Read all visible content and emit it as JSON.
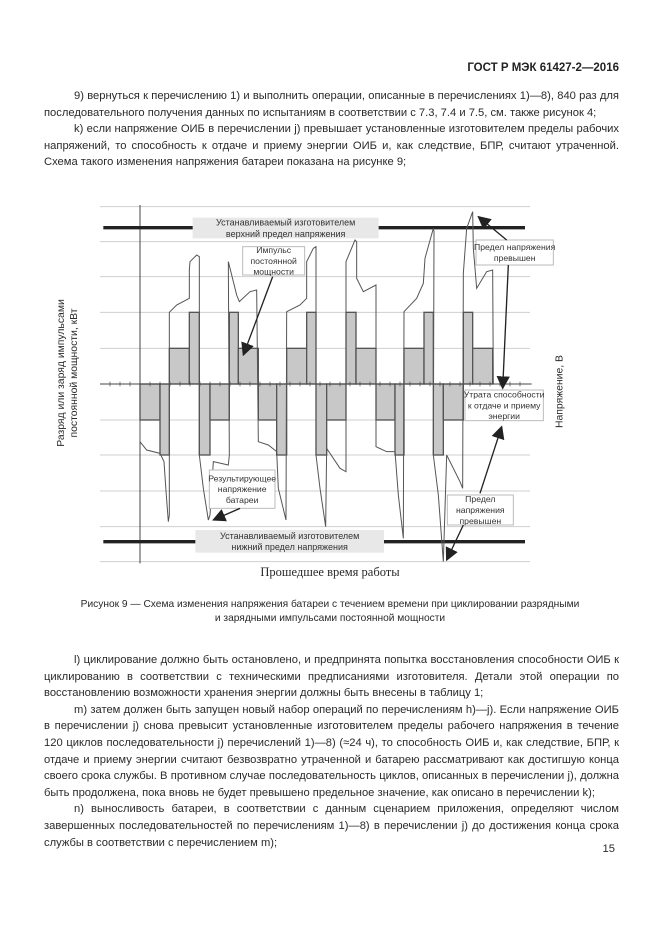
{
  "header": {
    "doc_id": "ГОСТ Р МЭК 61427-2—2016"
  },
  "top_paragraphs": [
    "9) вернуться к перечислению 1) и выполнить операции, описанные в перечислениях 1)—8), 840 раз для последовательного получения данных по испытаниям в соответствии с 7.3, 7.4 и 7.5, см. также рисунок 4;",
    "k) если напряжение ОИБ в перечислении j) превышает установленные изготовителем пределы рабочих напряжений, то способность к отдаче и приему энергии ОИБ и, как следствие, БПР, считают утраченной. Схема такого изменения напряжения батареи показана на рисунке 9;"
  ],
  "figure": {
    "upper_limit": [
      "Устанавливаемый изготовителем",
      "верхний предел напряжения"
    ],
    "lower_limit": [
      "Устанавливаемый изготовителем",
      "нижний предел напряжения"
    ],
    "pulse_label": [
      "Импульс",
      "постоянной",
      "мощности"
    ],
    "limit_exceeded_top": [
      "Предел напряжения",
      "превышен"
    ],
    "loss_label": [
      "Утрата способности",
      "к отдаче и приему",
      "энергии"
    ],
    "result_voltage": [
      "Результирующее",
      "напряжение",
      "батареи"
    ],
    "limit_exceeded_bottom": [
      "Предел",
      "напряжения",
      "превышен"
    ],
    "y_left_label": [
      "Разряд или заряд импульсами",
      "постоянной мощности, кВт"
    ],
    "y_right_label": "Напряжение, В",
    "x_label": "Прошедшее время работы"
  },
  "caption": [
    "Рисунок 9 — Схема изменения напряжения батареи с течением времени при циклировании разрядными",
    "и зарядными импульсами постоянной мощности"
  ],
  "bottom_paragraphs": [
    "l) циклирование должно быть остановлено, и предпринята попытка восстановления способности ОИБ к циклированию в соответствии с техническими предписаниями изготовителя. Детали этой операции по восстановлению возможности хранения энергии должны быть внесены в таблицу 1;",
    "m) затем должен быть запущен новый набор операций по перечислениям h)—j). Если напряжение ОИБ в перечислении j) снова превысит установленные изготовителем пределы рабочего напряжения в течение 120 циклов последовательности j) перечислений 1)—8) (≈24 ч), то способность ОИБ и, как следствие, БПР, к отдаче и приему энергии считают безвозвратно утраченной и батарею рассматривают как достигшую конца своего срока службы. В противном случае последовательность циклов, описанных в перечислении j), должна быть продолжена, пока вновь не будет превышено предельное значение, как описано в перечислении k);",
    "n) выносливость батареи, в соответствии с данным сценарием приложения, определяют числом завершенных последовательностей по перечислениям 1)—8) в перечислении j) до достижения конца срока службы в соответствии с перечислением m);"
  ],
  "page_number": "15",
  "colors": {
    "pulse_fill": "#c8c8c8",
    "grid": "#cfcfcf",
    "limit_line": "#222222",
    "label_box": "#e8e8e8"
  }
}
